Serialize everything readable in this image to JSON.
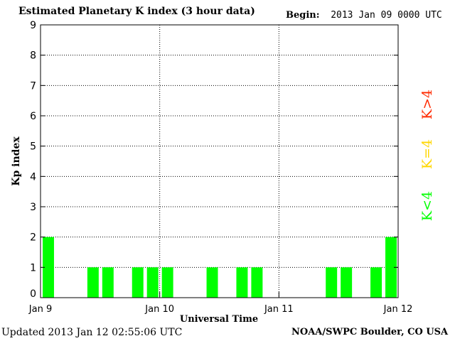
{
  "header": {
    "title": "Estimated Planetary K index (3 hour data)",
    "begin_label": "Begin:",
    "begin_value": "2013 Jan 09 0000 UTC"
  },
  "footer": {
    "updated": "Updated 2013 Jan 12 02:55:06 UTC",
    "credit": "NOAA/SWPC Boulder, CO USA"
  },
  "legend": [
    {
      "label": "K>4",
      "color": "#ff2a00"
    },
    {
      "label": "K=4",
      "color": "#ffd700"
    },
    {
      "label": "K<4",
      "color": "#00ff00"
    }
  ],
  "chart_data": {
    "type": "bar",
    "title": "Estimated Planetary K index (3 hour data)",
    "xlabel": "Universal Time",
    "ylabel": "Kp index",
    "ylim": [
      0,
      9
    ],
    "yticks": [
      0,
      1,
      2,
      3,
      4,
      5,
      6,
      7,
      8,
      9
    ],
    "xticks": [
      "Jan 9",
      "Jan 10",
      "Jan 11",
      "Jan 12"
    ],
    "bar_color": "#00ff00",
    "grid": true,
    "series": [
      {
        "interval_hours": 3,
        "values": [
          2,
          0,
          0,
          1,
          1,
          0,
          1,
          1,
          1,
          0,
          0,
          1,
          0,
          1,
          1,
          0,
          0,
          0,
          0,
          1,
          1,
          0,
          1,
          2
        ]
      }
    ]
  }
}
